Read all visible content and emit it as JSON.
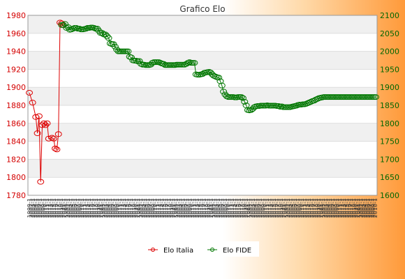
{
  "chart_data": {
    "type": "line",
    "title": "Grafico Elo",
    "y_left": {
      "min": 1780,
      "max": 1980,
      "ticks": [
        1780,
        1800,
        1820,
        1840,
        1860,
        1880,
        1900,
        1920,
        1940,
        1960,
        1980
      ]
    },
    "y_right": {
      "min": 1600,
      "max": 2100,
      "ticks": [
        1600,
        1650,
        1700,
        1750,
        1800,
        1850,
        1900,
        1950,
        2000,
        2050,
        2100
      ]
    },
    "x_count": 215,
    "x_tick_labels": [
      "1999-1",
      "2002-1",
      "2003-1",
      "2004-1",
      "2005-1",
      "2006-1",
      "2007-1",
      "2008-1",
      "2009-1",
      "2010-1",
      "2011-1",
      "2012-1",
      "2013-1",
      "2014-1",
      "2015-1",
      "2016-1",
      "2017-1",
      "2018-1",
      "2019-1",
      "2020-1",
      "2021-1"
    ],
    "grid": "horizontal bands",
    "legend": {
      "position": "bottom-center",
      "entries": [
        "Elo Italia",
        "Elo FIDE"
      ]
    },
    "colors": {
      "italia": "#dd0000",
      "fide": "#007700",
      "left_axis": "#d40000",
      "right_axis": "#006600",
      "band": "#f0f0f0",
      "gridline": "#dddddd"
    },
    "series": [
      {
        "name": "Elo Italia",
        "axis": "left",
        "points": [
          [
            0,
            1894
          ],
          [
            2,
            1883
          ],
          [
            4,
            1867
          ],
          [
            5,
            1849
          ],
          [
            6,
            1868
          ],
          [
            7,
            1795
          ],
          [
            8,
            1858
          ],
          [
            9,
            1860
          ],
          [
            10,
            1858
          ],
          [
            11,
            1860
          ],
          [
            12,
            1843
          ],
          [
            14,
            1844
          ],
          [
            15,
            1843
          ],
          [
            16,
            1832
          ],
          [
            17,
            1831
          ],
          [
            18,
            1848
          ],
          [
            19,
            1972
          ],
          [
            20,
            1971
          ],
          [
            21,
            1969
          ]
        ]
      },
      {
        "name": "Elo FIDE",
        "axis": "right",
        "points": [
          [
            20,
            2073
          ],
          [
            21,
            2073
          ],
          [
            22,
            2076
          ],
          [
            23,
            2065
          ],
          [
            24,
            2067
          ],
          [
            25,
            2060
          ],
          [
            26,
            2061
          ],
          [
            27,
            2063
          ],
          [
            28,
            2065
          ],
          [
            29,
            2065
          ],
          [
            30,
            2063
          ],
          [
            31,
            2063
          ],
          [
            32,
            2061
          ],
          [
            33,
            2061
          ],
          [
            34,
            2062
          ],
          [
            35,
            2063
          ],
          [
            36,
            2065
          ],
          [
            37,
            2065
          ],
          [
            38,
            2066
          ],
          [
            39,
            2066
          ],
          [
            40,
            2065
          ],
          [
            41,
            2063
          ],
          [
            42,
            2063
          ],
          [
            43,
            2057
          ],
          [
            44,
            2051
          ],
          [
            45,
            2051
          ],
          [
            46,
            2047
          ],
          [
            47,
            2047
          ],
          [
            48,
            2042
          ],
          [
            49,
            2037
          ],
          [
            50,
            2022
          ],
          [
            51,
            2020
          ],
          [
            52,
            2020
          ],
          [
            53,
            2013
          ],
          [
            54,
            2005
          ],
          [
            55,
            2000
          ],
          [
            56,
            2000
          ],
          [
            57,
            2000
          ],
          [
            58,
            2000
          ],
          [
            59,
            2000
          ],
          [
            60,
            2000
          ],
          [
            61,
            2000
          ],
          [
            62,
            1985
          ],
          [
            63,
            1983
          ],
          [
            64,
            1975
          ],
          [
            65,
            1974
          ],
          [
            66,
            1974
          ],
          [
            67,
            1972
          ],
          [
            68,
            1973
          ],
          [
            69,
            1965
          ],
          [
            70,
            1963
          ],
          [
            71,
            1963
          ],
          [
            72,
            1962
          ],
          [
            73,
            1962
          ],
          [
            74,
            1962
          ],
          [
            75,
            1963
          ],
          [
            76,
            1968
          ],
          [
            77,
            1970
          ],
          [
            78,
            1970
          ],
          [
            79,
            1970
          ],
          [
            80,
            1970
          ],
          [
            81,
            1968
          ],
          [
            82,
            1966
          ],
          [
            83,
            1965
          ],
          [
            84,
            1962
          ],
          [
            85,
            1962
          ],
          [
            86,
            1962
          ],
          [
            87,
            1962
          ],
          [
            88,
            1962
          ],
          [
            89,
            1962
          ],
          [
            90,
            1962
          ],
          [
            91,
            1963
          ],
          [
            92,
            1963
          ],
          [
            93,
            1963
          ],
          [
            94,
            1963
          ],
          [
            95,
            1963
          ],
          [
            96,
            1963
          ],
          [
            97,
            1965
          ],
          [
            98,
            1968
          ],
          [
            99,
            1970
          ],
          [
            100,
            1968
          ],
          [
            101,
            1968
          ],
          [
            102,
            1968
          ],
          [
            103,
            1936
          ],
          [
            104,
            1935
          ],
          [
            105,
            1935
          ],
          [
            106,
            1936
          ],
          [
            107,
            1937
          ],
          [
            108,
            1940
          ],
          [
            109,
            1941
          ],
          [
            110,
            1942
          ],
          [
            111,
            1943
          ],
          [
            112,
            1941
          ],
          [
            113,
            1936
          ],
          [
            114,
            1932
          ],
          [
            115,
            1930
          ],
          [
            116,
            1928
          ],
          [
            117,
            1927
          ],
          [
            118,
            1917
          ],
          [
            119,
            1905
          ],
          [
            120,
            1888
          ],
          [
            121,
            1880
          ],
          [
            122,
            1875
          ],
          [
            123,
            1873
          ],
          [
            124,
            1873
          ],
          [
            125,
            1873
          ],
          [
            126,
            1873
          ],
          [
            127,
            1872
          ],
          [
            128,
            1872
          ],
          [
            129,
            1873
          ],
          [
            130,
            1873
          ],
          [
            131,
            1873
          ],
          [
            132,
            1870
          ],
          [
            133,
            1860
          ],
          [
            134,
            1850
          ],
          [
            135,
            1837
          ],
          [
            136,
            1836
          ],
          [
            137,
            1837
          ],
          [
            138,
            1840
          ],
          [
            139,
            1845
          ],
          [
            140,
            1847
          ],
          [
            141,
            1848
          ],
          [
            142,
            1848
          ],
          [
            143,
            1849
          ],
          [
            144,
            1849
          ],
          [
            145,
            1849
          ],
          [
            146,
            1849
          ],
          [
            147,
            1850
          ],
          [
            148,
            1849
          ],
          [
            149,
            1849
          ],
          [
            150,
            1849
          ],
          [
            151,
            1849
          ],
          [
            152,
            1849
          ],
          [
            153,
            1848
          ],
          [
            154,
            1848
          ],
          [
            155,
            1846
          ],
          [
            156,
            1847
          ],
          [
            157,
            1845
          ],
          [
            158,
            1845
          ],
          [
            159,
            1845
          ],
          [
            160,
            1845
          ],
          [
            161,
            1845
          ],
          [
            162,
            1846
          ],
          [
            163,
            1847
          ],
          [
            164,
            1848
          ],
          [
            165,
            1849
          ],
          [
            166,
            1851
          ],
          [
            167,
            1852
          ],
          [
            168,
            1852
          ],
          [
            169,
            1853
          ],
          [
            170,
            1853
          ],
          [
            171,
            1854
          ],
          [
            172,
            1856
          ],
          [
            173,
            1858
          ],
          [
            174,
            1860
          ],
          [
            175,
            1862
          ],
          [
            176,
            1863
          ],
          [
            177,
            1866
          ],
          [
            178,
            1868
          ],
          [
            179,
            1870
          ],
          [
            180,
            1871
          ],
          [
            181,
            1872
          ],
          [
            182,
            1873
          ],
          [
            183,
            1873
          ],
          [
            184,
            1873
          ],
          [
            185,
            1873
          ],
          [
            186,
            1873
          ],
          [
            187,
            1873
          ],
          [
            188,
            1873
          ],
          [
            189,
            1873
          ],
          [
            190,
            1873
          ],
          [
            191,
            1873
          ],
          [
            192,
            1873
          ],
          [
            193,
            1873
          ],
          [
            194,
            1873
          ],
          [
            195,
            1873
          ],
          [
            196,
            1873
          ],
          [
            197,
            1873
          ],
          [
            198,
            1873
          ],
          [
            199,
            1873
          ],
          [
            200,
            1873
          ],
          [
            201,
            1873
          ],
          [
            202,
            1873
          ],
          [
            203,
            1873
          ],
          [
            204,
            1873
          ],
          [
            205,
            1873
          ],
          [
            206,
            1873
          ],
          [
            207,
            1873
          ],
          [
            208,
            1873
          ],
          [
            209,
            1873
          ],
          [
            210,
            1873
          ],
          [
            211,
            1873
          ],
          [
            212,
            1873
          ],
          [
            213,
            1873
          ],
          [
            214,
            1873
          ]
        ]
      }
    ]
  }
}
